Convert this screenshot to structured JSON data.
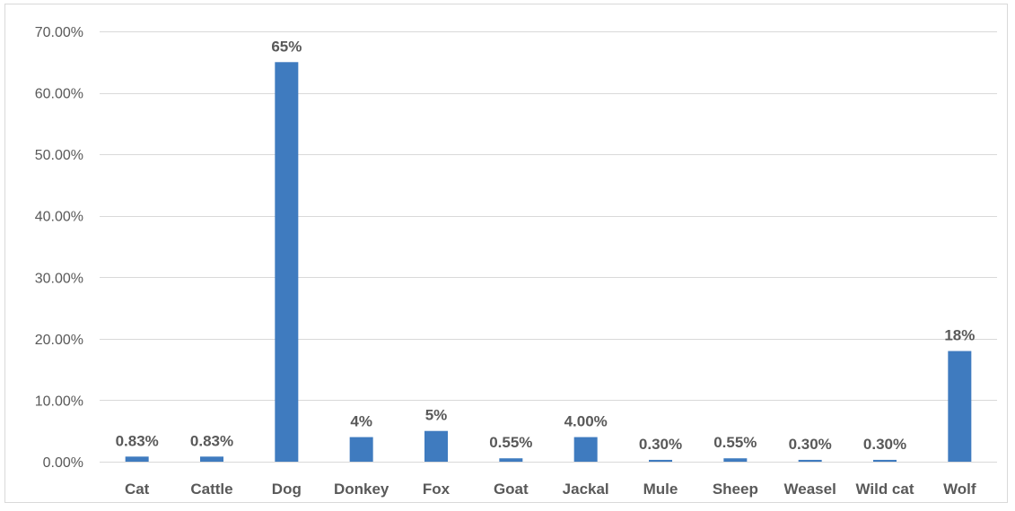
{
  "chart_data": {
    "type": "bar",
    "title": "",
    "xlabel": "",
    "ylabel": "",
    "categories": [
      "Cat",
      "Cattle",
      "Dog",
      "Donkey",
      "Fox",
      "Goat",
      "Jackal",
      "Mule",
      "Sheep",
      "Weasel",
      "Wild cat",
      "Wolf"
    ],
    "values": [
      0.83,
      0.83,
      65,
      4,
      5,
      0.55,
      4,
      0.3,
      0.55,
      0.3,
      0.3,
      18
    ],
    "data_labels": [
      "0.83%",
      "0.83%",
      "65%",
      "4%",
      "5%",
      "0.55%",
      "4.00%",
      "0.30%",
      "0.55%",
      "0.30%",
      "0.30%",
      "18%"
    ],
    "ylim": [
      0,
      70
    ],
    "yticks": [
      0,
      10,
      20,
      30,
      40,
      50,
      60,
      70
    ],
    "ytick_labels": [
      "0.00%",
      "10.00%",
      "20.00%",
      "30.00%",
      "40.00%",
      "50.00%",
      "60.00%",
      "70.00%"
    ],
    "grid": true,
    "legend": "none",
    "bar_color": "#3f7bbf",
    "gridline_color": "#d9d9d9",
    "text_color": "#595959"
  }
}
